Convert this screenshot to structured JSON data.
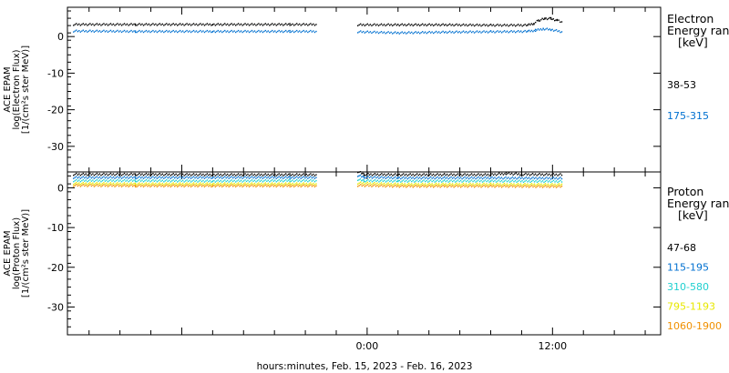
{
  "chart_data": [
    {
      "type": "scatter",
      "panel": "electron",
      "ylabel": [
        "ACE EPAM",
        "log(Electron Flux)",
        "[1/(cm²s ster MeV)]"
      ],
      "ylim": [
        -37,
        8
      ],
      "yticks": [
        0,
        -10,
        -20,
        -30
      ],
      "xlim": [
        -19.4,
        19.0
      ],
      "legend": {
        "title": [
          "Electron",
          "Energy range",
          "[keV]"
        ],
        "placement": "right"
      },
      "gaps": [
        [
          -3.2,
          -0.7
        ],
        [
          12.7,
          19.0
        ]
      ],
      "series": [
        {
          "name": "38-53",
          "color": "#000000",
          "points": [
            [
              -19.0,
              3.3
            ],
            [
              -15.0,
              3.3
            ],
            [
              -10.0,
              3.3
            ],
            [
              -5.0,
              3.3
            ],
            [
              -3.3,
              3.3
            ],
            [
              -0.6,
              3.2
            ],
            [
              2.0,
              3.2
            ],
            [
              5.0,
              3.2
            ],
            [
              8.0,
              3.1
            ],
            [
              10.4,
              3.1
            ],
            [
              10.8,
              3.6
            ],
            [
              11.1,
              4.4
            ],
            [
              11.5,
              4.9
            ],
            [
              11.9,
              4.9
            ],
            [
              12.3,
              4.4
            ],
            [
              12.6,
              3.9
            ]
          ]
        },
        {
          "name": "175-315",
          "color": "#0070d0",
          "points": [
            [
              -19.0,
              1.5
            ],
            [
              -15.0,
              1.4
            ],
            [
              -10.0,
              1.4
            ],
            [
              -5.0,
              1.4
            ],
            [
              -3.3,
              1.4
            ],
            [
              -0.6,
              1.3
            ],
            [
              2.0,
              1.0
            ],
            [
              5.0,
              1.2
            ],
            [
              8.0,
              1.3
            ],
            [
              10.4,
              1.4
            ],
            [
              10.9,
              1.7
            ],
            [
              11.4,
              2.1
            ],
            [
              11.9,
              1.9
            ],
            [
              12.6,
              1.3
            ]
          ]
        }
      ]
    },
    {
      "type": "scatter",
      "panel": "proton",
      "ylabel": [
        "ACE EPAM",
        "log(Proton Flux)",
        "[1/(cm²s ster MeV)]"
      ],
      "ylim": [
        -37,
        4
      ],
      "yticks": [
        0,
        -10,
        -20,
        -30
      ],
      "xticks": [
        {
          "value": 0,
          "label": "0:00"
        },
        {
          "value": 12,
          "label": "12:00"
        }
      ],
      "xlim": [
        -19.4,
        19.0
      ],
      "legend": {
        "title": [
          "Proton",
          "Energy range",
          "[keV]"
        ],
        "placement": "right"
      },
      "gaps": [
        [
          -3.2,
          -0.7
        ],
        [
          12.7,
          19.0
        ]
      ],
      "series": [
        {
          "name": "47-68",
          "color": "#000000",
          "points": [
            [
              -19.0,
              3.4
            ],
            [
              -15.0,
              3.4
            ],
            [
              -10.0,
              3.3
            ],
            [
              -5.0,
              3.3
            ],
            [
              -3.3,
              3.3
            ],
            [
              -0.6,
              4.1
            ],
            [
              -0.2,
              3.4
            ],
            [
              2.0,
              3.3
            ],
            [
              5.0,
              3.3
            ],
            [
              8.0,
              3.3
            ],
            [
              9.0,
              3.6
            ],
            [
              10.0,
              3.4
            ],
            [
              12.6,
              3.3
            ]
          ]
        },
        {
          "name": "115-195",
          "color": "#0070d0",
          "points": [
            [
              -19.0,
              2.6
            ],
            [
              -15.0,
              2.6
            ],
            [
              -10.0,
              2.6
            ],
            [
              -5.0,
              2.6
            ],
            [
              -3.3,
              2.6
            ],
            [
              -0.6,
              3.1
            ],
            [
              -0.2,
              2.7
            ],
            [
              2.0,
              2.5
            ],
            [
              5.0,
              2.5
            ],
            [
              8.0,
              2.5
            ],
            [
              12.6,
              2.4
            ]
          ]
        },
        {
          "name": "310-580",
          "color": "#20d0d0",
          "points": [
            [
              -19.0,
              1.8
            ],
            [
              -15.0,
              1.8
            ],
            [
              -10.0,
              1.7
            ],
            [
              -5.0,
              1.8
            ],
            [
              -3.3,
              1.8
            ],
            [
              -0.6,
              2.1
            ],
            [
              -0.2,
              1.8
            ],
            [
              2.0,
              1.7
            ],
            [
              5.0,
              1.7
            ],
            [
              8.0,
              1.7
            ],
            [
              12.6,
              1.6
            ]
          ]
        },
        {
          "name": "795-1193",
          "color": "#e8e800",
          "points": [
            [
              -19.0,
              1.1
            ],
            [
              -15.0,
              1.0
            ],
            [
              -10.0,
              1.0
            ],
            [
              -5.0,
              1.0
            ],
            [
              -3.3,
              1.0
            ],
            [
              -0.6,
              1.2
            ],
            [
              2.0,
              0.9
            ],
            [
              5.0,
              0.9
            ],
            [
              8.0,
              0.9
            ],
            [
              12.6,
              0.8
            ]
          ]
        },
        {
          "name": "1060-1900",
          "color": "#f09000",
          "points": [
            [
              -19.0,
              0.6
            ],
            [
              -15.0,
              0.5
            ],
            [
              -10.0,
              0.5
            ],
            [
              -5.0,
              0.5
            ],
            [
              -3.3,
              0.5
            ],
            [
              -0.6,
              0.6
            ],
            [
              2.0,
              0.4
            ],
            [
              5.0,
              0.4
            ],
            [
              8.0,
              0.4
            ],
            [
              12.6,
              0.3
            ]
          ]
        }
      ]
    }
  ],
  "xlabel": "hours:minutes, Feb. 15, 2023 - Feb. 16, 2023"
}
